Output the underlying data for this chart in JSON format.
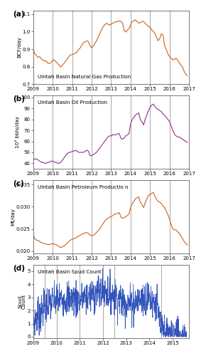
{
  "fig_width": 2.9,
  "fig_height": 5.0,
  "dpi": 100,
  "background_color": "#ffffff",
  "panel_labels": [
    "(a)",
    "(b)",
    "(c)",
    "(d)"
  ],
  "vline_years_abcd": [
    2010,
    2011,
    2012,
    2013,
    2014,
    2015,
    2016
  ],
  "vline_years_d": [
    2009.5,
    2010,
    2011,
    2012,
    2013,
    2014,
    2014.5
  ],
  "xlabel_years": [
    2009,
    2010,
    2011,
    2012,
    2013,
    2014,
    2015,
    2016,
    2017
  ],
  "xlabel_years_d": [
    2009,
    2010,
    2011,
    2012,
    2013,
    2014,
    2015
  ],
  "panel_a": {
    "title": "Uintah Basin Natural Gas Production",
    "ylabel": "BCF/day",
    "color": "#c8621c",
    "ylim": [
      0.7,
      1.12
    ],
    "yticks": [
      0.7,
      0.8,
      0.9,
      1.0,
      1.1
    ],
    "xlim": [
      2009.0,
      2017.0
    ],
    "data_x": [
      2009.0,
      2009.083,
      2009.167,
      2009.25,
      2009.333,
      2009.417,
      2009.5,
      2009.583,
      2009.667,
      2009.75,
      2009.833,
      2009.917,
      2010.0,
      2010.083,
      2010.167,
      2010.25,
      2010.333,
      2010.417,
      2010.5,
      2010.583,
      2010.667,
      2010.75,
      2010.833,
      2010.917,
      2011.0,
      2011.083,
      2011.167,
      2011.25,
      2011.333,
      2011.417,
      2011.5,
      2011.583,
      2011.667,
      2011.75,
      2011.833,
      2011.917,
      2012.0,
      2012.083,
      2012.167,
      2012.25,
      2012.333,
      2012.417,
      2012.5,
      2012.583,
      2012.667,
      2012.75,
      2012.833,
      2012.917,
      2013.0,
      2013.083,
      2013.167,
      2013.25,
      2013.333,
      2013.417,
      2013.5,
      2013.583,
      2013.667,
      2013.75,
      2013.833,
      2013.917,
      2014.0,
      2014.083,
      2014.167,
      2014.25,
      2014.333,
      2014.417,
      2014.5,
      2014.583,
      2014.667,
      2014.75,
      2014.833,
      2014.917,
      2015.0,
      2015.083,
      2015.167,
      2015.25,
      2015.333,
      2015.417,
      2015.5,
      2015.583,
      2015.667,
      2015.75,
      2015.833,
      2015.917,
      2016.0,
      2016.083,
      2016.167,
      2016.25,
      2016.333,
      2016.417,
      2016.5,
      2016.583,
      2016.667,
      2016.75,
      2016.833,
      2016.917
    ],
    "data_y": [
      0.895,
      0.875,
      0.862,
      0.853,
      0.857,
      0.843,
      0.838,
      0.833,
      0.832,
      0.82,
      0.818,
      0.823,
      0.838,
      0.838,
      0.828,
      0.818,
      0.808,
      0.798,
      0.808,
      0.82,
      0.833,
      0.843,
      0.858,
      0.868,
      0.868,
      0.873,
      0.878,
      0.883,
      0.898,
      0.908,
      0.923,
      0.938,
      0.943,
      0.948,
      0.943,
      0.918,
      0.908,
      0.918,
      0.933,
      0.948,
      0.968,
      0.988,
      1.008,
      1.028,
      1.038,
      1.048,
      1.043,
      1.038,
      1.043,
      1.048,
      1.053,
      1.058,
      1.058,
      1.062,
      1.058,
      1.052,
      1.008,
      0.998,
      1.008,
      1.018,
      1.038,
      1.058,
      1.062,
      1.068,
      1.058,
      1.048,
      1.052,
      1.058,
      1.058,
      1.048,
      1.038,
      1.028,
      1.028,
      1.008,
      1.003,
      0.988,
      0.968,
      0.948,
      0.962,
      0.988,
      0.978,
      0.918,
      0.898,
      0.873,
      0.858,
      0.848,
      0.838,
      0.843,
      0.848,
      0.838,
      0.823,
      0.808,
      0.798,
      0.773,
      0.758,
      0.748
    ]
  },
  "panel_b": {
    "title": "Uintah Basin Oil Production",
    "ylabel": "10³ bbls/day",
    "color": "#952d8c",
    "ylim": [
      35,
      102
    ],
    "yticks": [
      40,
      50,
      60,
      70,
      80,
      90,
      100
    ],
    "xlim": [
      2009.0,
      2017.0
    ],
    "data_x": [
      2009.0,
      2009.083,
      2009.167,
      2009.25,
      2009.333,
      2009.417,
      2009.5,
      2009.583,
      2009.667,
      2009.75,
      2009.833,
      2009.917,
      2010.0,
      2010.083,
      2010.167,
      2010.25,
      2010.333,
      2010.417,
      2010.5,
      2010.583,
      2010.667,
      2010.75,
      2010.833,
      2010.917,
      2011.0,
      2011.083,
      2011.167,
      2011.25,
      2011.333,
      2011.417,
      2011.5,
      2011.583,
      2011.667,
      2011.75,
      2011.833,
      2011.917,
      2012.0,
      2012.083,
      2012.167,
      2012.25,
      2012.333,
      2012.417,
      2012.5,
      2012.583,
      2012.667,
      2012.75,
      2012.833,
      2012.917,
      2013.0,
      2013.083,
      2013.167,
      2013.25,
      2013.333,
      2013.417,
      2013.5,
      2013.583,
      2013.667,
      2013.75,
      2013.833,
      2013.917,
      2014.0,
      2014.083,
      2014.167,
      2014.25,
      2014.333,
      2014.417,
      2014.5,
      2014.583,
      2014.667,
      2014.75,
      2014.833,
      2014.917,
      2015.0,
      2015.083,
      2015.167,
      2015.25,
      2015.333,
      2015.417,
      2015.5,
      2015.583,
      2015.667,
      2015.75,
      2015.833,
      2015.917,
      2016.0,
      2016.083,
      2016.167,
      2016.25,
      2016.333,
      2016.417,
      2016.5,
      2016.583,
      2016.667,
      2016.75,
      2016.833,
      2016.917
    ],
    "data_y": [
      43,
      44,
      44,
      43,
      42,
      41,
      41,
      40,
      40,
      41,
      41,
      42,
      42,
      41,
      41,
      40,
      40,
      41,
      43,
      45,
      47,
      49,
      50,
      50,
      51,
      51,
      52,
      51,
      50,
      50,
      50,
      50,
      51,
      52,
      51,
      47,
      47,
      48,
      49,
      50,
      52,
      54,
      56,
      58,
      60,
      62,
      64,
      65,
      65,
      66,
      66,
      66,
      67,
      67,
      63,
      62,
      63,
      65,
      66,
      67,
      76,
      80,
      82,
      84,
      85,
      86,
      80,
      78,
      75,
      80,
      84,
      88,
      91,
      93,
      94,
      92,
      90,
      89,
      88,
      87,
      85,
      84,
      82,
      80,
      78,
      74,
      70,
      67,
      65,
      64,
      64,
      63,
      62,
      61,
      60,
      59
    ]
  },
  "panel_c": {
    "title": "Uintah Basin Petroleum Productio n",
    "ylabel": "Mt/day",
    "color": "#c8621c",
    "ylim": [
      0.0195,
      0.036
    ],
    "yticks": [
      0.02,
      0.025,
      0.03,
      0.035
    ],
    "xlim": [
      2009.0,
      2017.0
    ],
    "data_x": [
      2009.0,
      2009.083,
      2009.167,
      2009.25,
      2009.333,
      2009.417,
      2009.5,
      2009.583,
      2009.667,
      2009.75,
      2009.833,
      2009.917,
      2010.0,
      2010.083,
      2010.167,
      2010.25,
      2010.333,
      2010.417,
      2010.5,
      2010.583,
      2010.667,
      2010.75,
      2010.833,
      2010.917,
      2011.0,
      2011.083,
      2011.167,
      2011.25,
      2011.333,
      2011.417,
      2011.5,
      2011.583,
      2011.667,
      2011.75,
      2011.833,
      2011.917,
      2012.0,
      2012.083,
      2012.167,
      2012.25,
      2012.333,
      2012.417,
      2012.5,
      2012.583,
      2012.667,
      2012.75,
      2012.833,
      2012.917,
      2013.0,
      2013.083,
      2013.167,
      2013.25,
      2013.333,
      2013.417,
      2013.5,
      2013.583,
      2013.667,
      2013.75,
      2013.833,
      2013.917,
      2014.0,
      2014.083,
      2014.167,
      2014.25,
      2014.333,
      2014.417,
      2014.5,
      2014.583,
      2014.667,
      2014.75,
      2014.833,
      2014.917,
      2015.0,
      2015.083,
      2015.167,
      2015.25,
      2015.333,
      2015.417,
      2015.5,
      2015.583,
      2015.667,
      2015.75,
      2015.833,
      2015.917,
      2016.0,
      2016.083,
      2016.167,
      2016.25,
      2016.333,
      2016.417,
      2016.5,
      2016.583,
      2016.667,
      2016.75,
      2016.833,
      2016.917
    ],
    "data_y": [
      0.0235,
      0.0228,
      0.0225,
      0.0224,
      0.0222,
      0.0219,
      0.0218,
      0.0217,
      0.0216,
      0.0215,
      0.0215,
      0.0216,
      0.0217,
      0.0216,
      0.0215,
      0.0213,
      0.021,
      0.0208,
      0.021,
      0.0212,
      0.0215,
      0.0218,
      0.0222,
      0.0225,
      0.0227,
      0.0228,
      0.023,
      0.0232,
      0.0234,
      0.0236,
      0.0238,
      0.024,
      0.0241,
      0.0242,
      0.024,
      0.0236,
      0.0235,
      0.0236,
      0.0238,
      0.0242,
      0.0246,
      0.025,
      0.0256,
      0.0262,
      0.0267,
      0.0272,
      0.0274,
      0.0276,
      0.0278,
      0.028,
      0.0283,
      0.0284,
      0.0285,
      0.0287,
      0.0277,
      0.0274,
      0.0275,
      0.0278,
      0.028,
      0.0284,
      0.0298,
      0.0307,
      0.0312,
      0.0318,
      0.032,
      0.0322,
      0.031,
      0.0305,
      0.0298,
      0.0308,
      0.0318,
      0.0325,
      0.0328,
      0.033,
      0.0332,
      0.0324,
      0.0316,
      0.0312,
      0.031,
      0.0307,
      0.0302,
      0.0298,
      0.029,
      0.0282,
      0.0272,
      0.026,
      0.025,
      0.0248,
      0.0248,
      0.0244,
      0.024,
      0.0235,
      0.0228,
      0.0222,
      0.0218,
      0.0214
    ]
  },
  "panel_d": {
    "title": "Uintah Basin Spud Count",
    "ylabel": "Spud\nCount",
    "color": "#3355bb",
    "ylim": [
      -0.1,
      5.5
    ],
    "yticks": [
      0,
      1,
      2,
      3,
      4,
      5
    ],
    "xlim": [
      2009.0,
      2015.7
    ],
    "vline_years": [
      2009.5,
      2010,
      2011,
      2012,
      2012.5,
      2014.5
    ],
    "noise_seed": 7
  },
  "vline_color": "#999999",
  "vline_lw": 0.6,
  "tick_fontsize": 5.0,
  "title_fontsize": 5.2,
  "ylabel_fontsize": 5.2,
  "panel_label_fontsize": 7.5,
  "line_width": 0.8
}
